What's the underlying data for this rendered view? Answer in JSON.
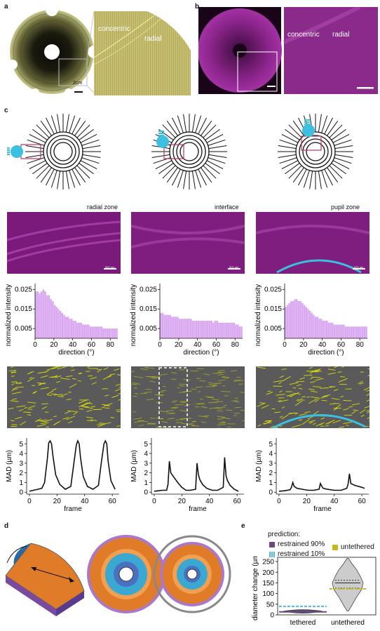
{
  "panels": {
    "a": {
      "label": "a",
      "scalebar": "2cm",
      "zone_concentric": "concentric",
      "zone_radial": "radial"
    },
    "b": {
      "label": "b",
      "zone_concentric": "concentric",
      "zone_radial": "radial"
    },
    "c": {
      "label": "c",
      "zones": [
        "radial zone",
        "interface",
        "pupil zone"
      ],
      "scale_text": "500 µm"
    },
    "d": {
      "label": "d"
    },
    "e": {
      "label": "e",
      "legend_title": "prediction:",
      "legend_items": [
        {
          "label": "restrained 90%",
          "color": "#6b4a7a"
        },
        {
          "label": "restrained 10%",
          "color": "#4fb8d6"
        },
        {
          "label": "untethered",
          "color": "#c8b820"
        }
      ]
    }
  },
  "colors": {
    "magenta": "#9b2a9b",
    "hist": "#d9a8f0",
    "cyan": "#3cc0e0",
    "yellow": "#e8e800",
    "orange": "#e07c28",
    "purple": "#6a4aa0"
  },
  "chart_data": [
    {
      "type": "bar",
      "id": "hist-radial",
      "xlabel": "direction (°)",
      "ylabel": "normalized intensity",
      "yticks": [
        0.005,
        0.015,
        0.025
      ],
      "xticks": [
        0,
        20,
        40,
        60,
        80
      ],
      "xlim": [
        0,
        88
      ],
      "ylim": [
        0,
        0.028
      ],
      "x": [
        1,
        3,
        5,
        7,
        9,
        11,
        13,
        15,
        17,
        19,
        21,
        23,
        25,
        27,
        29,
        31,
        33,
        35,
        37,
        39,
        41,
        43,
        45,
        47,
        49,
        51,
        53,
        55,
        57,
        59,
        61,
        63,
        65,
        67,
        69,
        71,
        73,
        75,
        77,
        79,
        81,
        83,
        85,
        87
      ],
      "values": [
        0.024,
        0.024,
        0.023,
        0.024,
        0.025,
        0.024,
        0.022,
        0.022,
        0.02,
        0.019,
        0.017,
        0.016,
        0.015,
        0.014,
        0.013,
        0.012,
        0.011,
        0.011,
        0.01,
        0.01,
        0.009,
        0.009,
        0.008,
        0.008,
        0.008,
        0.007,
        0.007,
        0.007,
        0.007,
        0.006,
        0.006,
        0.006,
        0.006,
        0.006,
        0.006,
        0.006,
        0.005,
        0.005,
        0.005,
        0.005,
        0.005,
        0.005,
        0.005,
        0.005
      ]
    },
    {
      "type": "bar",
      "id": "hist-interface",
      "xlabel": "direction (°)",
      "ylabel": "normalized intensity",
      "yticks": [
        0.005,
        0.015,
        0.025
      ],
      "xticks": [
        0,
        20,
        40,
        60,
        80
      ],
      "xlim": [
        0,
        88
      ],
      "ylim": [
        0,
        0.028
      ],
      "x": [
        1,
        3,
        5,
        7,
        9,
        11,
        13,
        15,
        17,
        19,
        21,
        23,
        25,
        27,
        29,
        31,
        33,
        35,
        37,
        39,
        41,
        43,
        45,
        47,
        49,
        51,
        53,
        55,
        57,
        59,
        61,
        63,
        65,
        67,
        69,
        71,
        73,
        75,
        77,
        79,
        81,
        83,
        85,
        87
      ],
      "values": [
        0.013,
        0.013,
        0.012,
        0.012,
        0.012,
        0.012,
        0.011,
        0.011,
        0.011,
        0.011,
        0.01,
        0.01,
        0.01,
        0.01,
        0.01,
        0.01,
        0.01,
        0.009,
        0.009,
        0.009,
        0.009,
        0.009,
        0.009,
        0.009,
        0.009,
        0.009,
        0.009,
        0.009,
        0.008,
        0.009,
        0.009,
        0.008,
        0.008,
        0.008,
        0.008,
        0.008,
        0.008,
        0.008,
        0.008,
        0.008,
        0.007,
        0.007,
        0.006,
        0.006
      ]
    },
    {
      "type": "bar",
      "id": "hist-pupil",
      "xlabel": "direction (°)",
      "ylabel": "normalized intensity",
      "yticks": [
        0.005,
        0.015,
        0.025
      ],
      "xticks": [
        0,
        20,
        40,
        60,
        80
      ],
      "xlim": [
        0,
        88
      ],
      "ylim": [
        0,
        0.028
      ],
      "x": [
        1,
        3,
        5,
        7,
        9,
        11,
        13,
        15,
        17,
        19,
        21,
        23,
        25,
        27,
        29,
        31,
        33,
        35,
        37,
        39,
        41,
        43,
        45,
        47,
        49,
        51,
        53,
        55,
        57,
        59,
        61,
        63,
        65,
        67,
        69,
        71,
        73,
        75,
        77,
        79,
        81,
        83,
        85,
        87
      ],
      "values": [
        0.016,
        0.017,
        0.018,
        0.019,
        0.019,
        0.02,
        0.02,
        0.019,
        0.019,
        0.018,
        0.017,
        0.016,
        0.015,
        0.014,
        0.013,
        0.012,
        0.011,
        0.011,
        0.01,
        0.01,
        0.009,
        0.009,
        0.009,
        0.008,
        0.008,
        0.008,
        0.007,
        0.007,
        0.007,
        0.007,
        0.007,
        0.007,
        0.006,
        0.006,
        0.006,
        0.006,
        0.006,
        0.006,
        0.006,
        0.006,
        0.006,
        0.006,
        0.006,
        0.006
      ]
    },
    {
      "type": "line",
      "id": "mad-radial",
      "xlabel": "frame",
      "ylabel": "MAD (µm)",
      "xticks": [
        0,
        20,
        40,
        60
      ],
      "yticks": [
        0,
        1,
        2,
        3,
        4,
        5
      ],
      "xlim": [
        -2,
        65
      ],
      "ylim": [
        -0.2,
        5.6
      ],
      "x": [
        0,
        3,
        6,
        9,
        11,
        13,
        14,
        15,
        16,
        17,
        19,
        22,
        26,
        30,
        32,
        34,
        35,
        36,
        37,
        39,
        42,
        46,
        50,
        52,
        54,
        55,
        56,
        57,
        59,
        62
      ],
      "y": [
        0.1,
        0.2,
        0.3,
        0.4,
        1.0,
        3.5,
        5.1,
        5.3,
        5.0,
        3.8,
        1.8,
        0.8,
        0.3,
        0.6,
        2.8,
        4.9,
        5.3,
        5.0,
        3.6,
        1.6,
        0.6,
        0.3,
        0.7,
        3.0,
        5.0,
        5.3,
        5.0,
        3.2,
        1.2,
        0.3
      ]
    },
    {
      "type": "line",
      "id": "mad-interface",
      "xlabel": "frame",
      "ylabel": "MAD (µm)",
      "xticks": [
        0,
        20,
        40,
        60
      ],
      "yticks": [
        0,
        1,
        2,
        3,
        4,
        5
      ],
      "xlim": [
        -2,
        65
      ],
      "ylim": [
        -0.2,
        5.6
      ],
      "x": [
        0,
        3,
        6,
        9,
        10,
        11,
        12,
        14,
        17,
        20,
        23,
        26,
        30,
        31,
        32,
        33,
        35,
        38,
        42,
        46,
        50,
        51,
        52,
        53,
        55,
        58,
        61
      ],
      "y": [
        0.1,
        0.15,
        0.2,
        0.2,
        0.8,
        3.2,
        2.0,
        1.6,
        1.0,
        0.5,
        0.2,
        0.2,
        0.3,
        3.0,
        1.8,
        1.3,
        0.8,
        0.4,
        0.2,
        0.2,
        0.5,
        3.6,
        1.7,
        1.2,
        0.7,
        0.3,
        0.1
      ]
    },
    {
      "type": "line",
      "id": "mad-pupil",
      "xlabel": "frame",
      "ylabel": "MAD (µm)",
      "xticks": [
        0,
        20,
        40,
        60
      ],
      "yticks": [
        0,
        1,
        2,
        3,
        4,
        5
      ],
      "xlim": [
        -2,
        65
      ],
      "ylim": [
        -0.2,
        5.6
      ],
      "x": [
        0,
        4,
        8,
        9,
        10,
        11,
        13,
        17,
        21,
        25,
        29,
        30,
        31,
        32,
        35,
        40,
        45,
        49,
        50,
        51,
        52,
        55,
        60,
        62
      ],
      "y": [
        0.1,
        0.15,
        0.25,
        0.5,
        1.0,
        0.6,
        0.4,
        0.3,
        0.2,
        0.2,
        0.3,
        0.9,
        0.6,
        0.4,
        0.3,
        0.2,
        0.2,
        0.4,
        0.8,
        1.9,
        0.9,
        0.7,
        0.5,
        0.4
      ]
    },
    {
      "type": "violin",
      "id": "diameter-change",
      "ylabel": "diameter change (µm)",
      "categories": [
        "tethered",
        "untethered"
      ],
      "yticks": [
        0,
        50,
        100,
        150,
        200,
        250
      ],
      "ylim": [
        0,
        270
      ],
      "tethered": {
        "min": 5,
        "max": 22,
        "median": 17,
        "q1": 14,
        "q3": 20
      },
      "untethered": {
        "min": 18,
        "max": 265,
        "median": 150,
        "q1": 125,
        "q3": 162
      },
      "predictions": [
        {
          "name": "restrained 90%",
          "value": 14
        },
        {
          "name": "restrained 10%",
          "value": 40
        },
        {
          "name": "untethered",
          "value": 122
        }
      ]
    }
  ]
}
